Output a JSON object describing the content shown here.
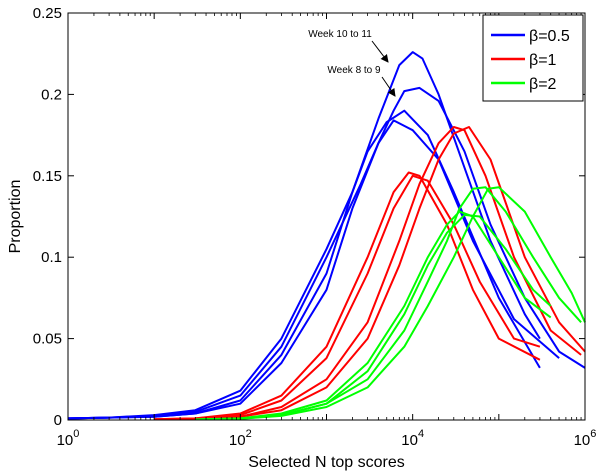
{
  "chart_data": {
    "type": "line",
    "title": "",
    "xlabel": "Selected N top scores",
    "ylabel": "Proportion",
    "xscale": "log",
    "xlim": [
      1,
      1000000
    ],
    "ylim": [
      0,
      0.25
    ],
    "grid": false,
    "legend_position": "top-right",
    "x_ticks": [
      {
        "value": 1,
        "base": "10",
        "exp": "0"
      },
      {
        "value": 100,
        "base": "10",
        "exp": "2"
      },
      {
        "value": 10000,
        "base": "10",
        "exp": "4"
      },
      {
        "value": 1000000,
        "base": "10",
        "exp": "6"
      }
    ],
    "y_ticks": [
      {
        "value": 0,
        "label": "0"
      },
      {
        "value": 0.05,
        "label": "0.05"
      },
      {
        "value": 0.1,
        "label": "0.1"
      },
      {
        "value": 0.15,
        "label": "0.15"
      },
      {
        "value": 0.2,
        "label": "0.2"
      },
      {
        "value": 0.25,
        "label": "0.25"
      }
    ],
    "legend": [
      {
        "name": "β=0.5",
        "color": "#0000ff"
      },
      {
        "name": "β=1",
        "color": "#ff0000"
      },
      {
        "name": "β=2",
        "color": "#00ff00"
      }
    ],
    "annotations": [
      {
        "text": "Week 10 to 11",
        "x": 8000,
        "y": 0.226
      },
      {
        "text": "Week 8 to 9",
        "x": 6800,
        "y": 0.203
      }
    ],
    "series": [
      {
        "group": "β=0.5",
        "color": "#0000ff",
        "points": [
          [
            1,
            0.001
          ],
          [
            3,
            0.0015
          ],
          [
            10,
            0.003
          ],
          [
            30,
            0.006
          ],
          [
            100,
            0.018
          ],
          [
            300,
            0.05
          ],
          [
            1000,
            0.105
          ],
          [
            2000,
            0.14
          ],
          [
            3000,
            0.165
          ],
          [
            5000,
            0.183
          ],
          [
            8000,
            0.19
          ],
          [
            15000,
            0.175
          ],
          [
            30000,
            0.14
          ],
          [
            100000,
            0.075
          ],
          [
            300000,
            0.032
          ]
        ]
      },
      {
        "group": "β=0.5",
        "color": "#0000ff",
        "points": [
          [
            1,
            0.001
          ],
          [
            3,
            0.0015
          ],
          [
            10,
            0.0025
          ],
          [
            30,
            0.005
          ],
          [
            100,
            0.015
          ],
          [
            300,
            0.045
          ],
          [
            1000,
            0.1
          ],
          [
            2500,
            0.145
          ],
          [
            4000,
            0.17
          ],
          [
            6000,
            0.184
          ],
          [
            10000,
            0.178
          ],
          [
            20000,
            0.16
          ],
          [
            50000,
            0.11
          ],
          [
            150000,
            0.062
          ],
          [
            500000,
            0.038
          ]
        ]
      },
      {
        "group": "β=0.5",
        "color": "#0000ff",
        "points": [
          [
            1,
            0.001
          ],
          [
            10,
            0.002
          ],
          [
            30,
            0.004
          ],
          [
            100,
            0.01
          ],
          [
            300,
            0.035
          ],
          [
            1000,
            0.08
          ],
          [
            2000,
            0.13
          ],
          [
            4000,
            0.17
          ],
          [
            6000,
            0.19
          ],
          [
            8000,
            0.202
          ],
          [
            12000,
            0.204
          ],
          [
            20000,
            0.196
          ],
          [
            40000,
            0.165
          ],
          [
            80000,
            0.12
          ],
          [
            200000,
            0.075
          ],
          [
            500000,
            0.042
          ],
          [
            1000000,
            0.032
          ]
        ]
      },
      {
        "group": "β=0.5",
        "color": "#0000ff",
        "points": [
          [
            1,
            0.001
          ],
          [
            10,
            0.002
          ],
          [
            30,
            0.004
          ],
          [
            100,
            0.012
          ],
          [
            300,
            0.04
          ],
          [
            1000,
            0.09
          ],
          [
            2000,
            0.14
          ],
          [
            4000,
            0.185
          ],
          [
            7000,
            0.218
          ],
          [
            10000,
            0.226
          ],
          [
            13000,
            0.222
          ],
          [
            20000,
            0.2
          ],
          [
            40000,
            0.155
          ],
          [
            80000,
            0.11
          ],
          [
            200000,
            0.065
          ],
          [
            300000,
            0.05
          ]
        ]
      },
      {
        "group": "β=1",
        "color": "#ff0000",
        "points": [
          [
            10,
            0.0005
          ],
          [
            30,
            0.001
          ],
          [
            100,
            0.004
          ],
          [
            300,
            0.015
          ],
          [
            1000,
            0.045
          ],
          [
            3000,
            0.1
          ],
          [
            6000,
            0.14
          ],
          [
            9000,
            0.152
          ],
          [
            12000,
            0.15
          ],
          [
            25000,
            0.12
          ],
          [
            50000,
            0.08
          ],
          [
            100000,
            0.05
          ],
          [
            300000,
            0.037
          ]
        ]
      },
      {
        "group": "β=1",
        "color": "#ff0000",
        "points": [
          [
            10,
            0.0005
          ],
          [
            30,
            0.001
          ],
          [
            100,
            0.003
          ],
          [
            300,
            0.012
          ],
          [
            1000,
            0.038
          ],
          [
            3000,
            0.09
          ],
          [
            6000,
            0.13
          ],
          [
            10000,
            0.15
          ],
          [
            15000,
            0.147
          ],
          [
            30000,
            0.12
          ],
          [
            60000,
            0.085
          ],
          [
            150000,
            0.05
          ],
          [
            300000,
            0.045
          ]
        ]
      },
      {
        "group": "β=1",
        "color": "#ff0000",
        "points": [
          [
            30,
            0.0008
          ],
          [
            100,
            0.002
          ],
          [
            300,
            0.008
          ],
          [
            1000,
            0.025
          ],
          [
            3000,
            0.06
          ],
          [
            7000,
            0.11
          ],
          [
            12000,
            0.145
          ],
          [
            20000,
            0.17
          ],
          [
            30000,
            0.18
          ],
          [
            40000,
            0.178
          ],
          [
            70000,
            0.15
          ],
          [
            150000,
            0.1
          ],
          [
            400000,
            0.055
          ],
          [
            900000,
            0.04
          ]
        ]
      },
      {
        "group": "β=1",
        "color": "#ff0000",
        "points": [
          [
            30,
            0.0008
          ],
          [
            100,
            0.002
          ],
          [
            300,
            0.006
          ],
          [
            1000,
            0.02
          ],
          [
            3000,
            0.05
          ],
          [
            7000,
            0.095
          ],
          [
            12000,
            0.13
          ],
          [
            20000,
            0.16
          ],
          [
            30000,
            0.176
          ],
          [
            45000,
            0.18
          ],
          [
            80000,
            0.16
          ],
          [
            200000,
            0.1
          ],
          [
            500000,
            0.06
          ],
          [
            1000000,
            0.042
          ]
        ]
      },
      {
        "group": "β=2",
        "color": "#00ff00",
        "points": [
          [
            30,
            0.0003
          ],
          [
            100,
            0.001
          ],
          [
            300,
            0.004
          ],
          [
            1000,
            0.012
          ],
          [
            3000,
            0.035
          ],
          [
            8000,
            0.07
          ],
          [
            15000,
            0.1
          ],
          [
            25000,
            0.12
          ],
          [
            35000,
            0.128
          ],
          [
            50000,
            0.125
          ],
          [
            100000,
            0.1
          ],
          [
            200000,
            0.075
          ],
          [
            400000,
            0.063
          ]
        ]
      },
      {
        "group": "β=2",
        "color": "#00ff00",
        "points": [
          [
            30,
            0.0003
          ],
          [
            100,
            0.001
          ],
          [
            300,
            0.003
          ],
          [
            1000,
            0.01
          ],
          [
            3000,
            0.03
          ],
          [
            8000,
            0.065
          ],
          [
            15000,
            0.095
          ],
          [
            25000,
            0.115
          ],
          [
            40000,
            0.126
          ],
          [
            60000,
            0.125
          ],
          [
            120000,
            0.105
          ],
          [
            250000,
            0.08
          ],
          [
            400000,
            0.07
          ]
        ]
      },
      {
        "group": "β=2",
        "color": "#00ff00",
        "points": [
          [
            30,
            0.0003
          ],
          [
            100,
            0.0008
          ],
          [
            300,
            0.003
          ],
          [
            1000,
            0.01
          ],
          [
            3000,
            0.025
          ],
          [
            8000,
            0.055
          ],
          [
            15000,
            0.085
          ],
          [
            25000,
            0.11
          ],
          [
            35000,
            0.13
          ],
          [
            50000,
            0.142
          ],
          [
            70000,
            0.143
          ],
          [
            120000,
            0.128
          ],
          [
            250000,
            0.1
          ],
          [
            500000,
            0.075
          ],
          [
            900000,
            0.06
          ]
        ]
      },
      {
        "group": "β=2",
        "color": "#00ff00",
        "points": [
          [
            30,
            0.0003
          ],
          [
            100,
            0.0008
          ],
          [
            300,
            0.0025
          ],
          [
            1000,
            0.008
          ],
          [
            3000,
            0.02
          ],
          [
            8000,
            0.045
          ],
          [
            15000,
            0.07
          ],
          [
            30000,
            0.1
          ],
          [
            50000,
            0.125
          ],
          [
            75000,
            0.142
          ],
          [
            100000,
            0.143
          ],
          [
            200000,
            0.128
          ],
          [
            400000,
            0.1
          ],
          [
            700000,
            0.078
          ],
          [
            1000000,
            0.06
          ]
        ]
      }
    ]
  }
}
